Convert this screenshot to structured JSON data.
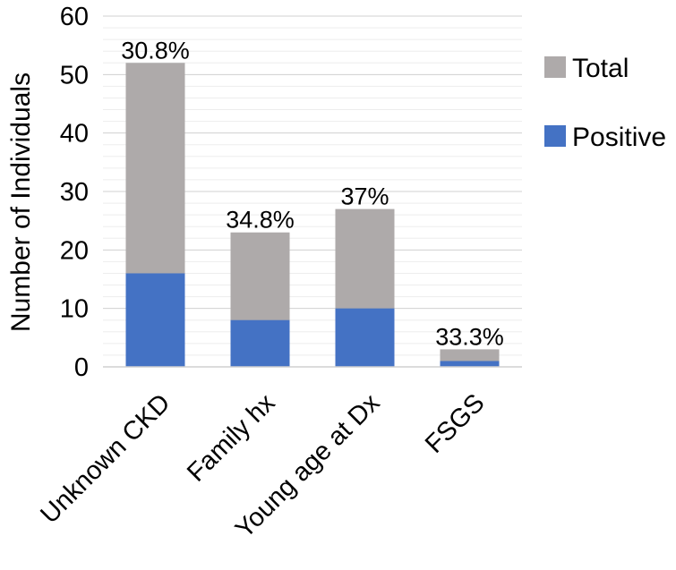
{
  "chart_data": {
    "type": "bar",
    "stacked": true,
    "categories": [
      "Unknown CKD",
      "Family hx",
      "Young age at Dx",
      "FSGS"
    ],
    "series": [
      {
        "name": "Total",
        "values": [
          52,
          23,
          27,
          3
        ],
        "color": "#AEAAAA"
      },
      {
        "name": "Positive",
        "values": [
          16,
          8,
          10,
          1
        ],
        "color": "#4472C4"
      }
    ],
    "data_labels": [
      "30.8%",
      "34.8%",
      "37%",
      "33.3%"
    ],
    "title": "",
    "xlabel": "",
    "ylabel": "Number of Individuals",
    "ylim": [
      0,
      60
    ],
    "yticks": [
      0,
      10,
      20,
      30,
      40,
      50,
      60
    ],
    "grid": true,
    "minor_grid": true,
    "legend_position": "right",
    "category_label_rotation": -45
  }
}
